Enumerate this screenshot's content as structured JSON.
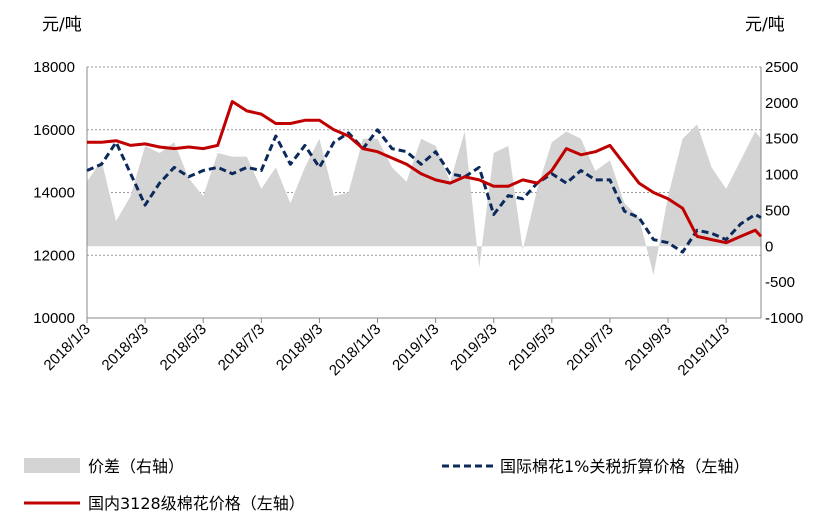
{
  "chart_data": {
    "type": "line",
    "left_unit": "元/吨",
    "right_unit": "元/吨",
    "left_axis": {
      "min": 10000,
      "max": 18000,
      "ticks": [
        "10000",
        "12000",
        "14000",
        "16000",
        "18000"
      ]
    },
    "right_axis": {
      "min": -1000,
      "max": 2500,
      "ticks": [
        "-1000",
        "-500",
        "0",
        "500",
        "1000",
        "1500",
        "2000",
        "2500"
      ]
    },
    "x_labels": [
      "2018/1/3",
      "2018/3/3",
      "2018/5/3",
      "2018/7/3",
      "2018/9/3",
      "2018/11/3",
      "2019/1/3",
      "2019/3/3",
      "2019/5/3",
      "2019/7/3",
      "2019/9/3",
      "2019/11/3"
    ],
    "grid": "horizontal dashed",
    "legend_placement": "bottom",
    "colors": {
      "spread": "#d4d4d4",
      "intl": "#0b2a5b",
      "domestic": "#c00000"
    },
    "series": [
      {
        "name": "价差（右轴）",
        "axis": "right",
        "style": "area",
        "x": [
          0,
          0.5,
          1,
          1.5,
          2,
          2.5,
          3,
          3.5,
          4,
          4.5,
          5,
          5.5,
          6,
          6.5,
          7,
          7.5,
          8,
          8.5,
          9,
          9.5,
          10,
          10.5,
          11,
          11.5,
          12,
          12.5,
          13,
          13.5,
          14,
          14.5,
          15,
          15.5,
          16,
          16.5,
          17,
          17.5,
          18,
          18.5,
          19,
          19.5,
          20,
          20.5,
          21,
          21.5,
          22,
          22.5,
          23,
          23.2
        ],
        "values": [
          900,
          1200,
          350,
          700,
          1400,
          1300,
          1450,
          950,
          700,
          1300,
          1250,
          1250,
          800,
          1100,
          600,
          1100,
          1500,
          700,
          750,
          1500,
          1500,
          1100,
          900,
          1500,
          1400,
          900,
          1600,
          -300,
          1300,
          1400,
          -50,
          800,
          1450,
          1600,
          1500,
          1050,
          1200,
          600,
          400,
          -400,
          700,
          1500,
          1700,
          1100,
          800,
          1200,
          1600,
          1500
        ]
      },
      {
        "name": "国际棉花1%关税折算价格（左轴）",
        "axis": "left",
        "style": "dashed",
        "x": [
          0,
          0.5,
          1,
          1.5,
          2,
          2.5,
          3,
          3.5,
          4,
          4.5,
          5,
          5.5,
          6,
          6.5,
          7,
          7.5,
          8,
          8.5,
          9,
          9.5,
          10,
          10.5,
          11,
          11.5,
          12,
          12.5,
          13,
          13.5,
          14,
          14.5,
          15,
          15.5,
          16,
          16.5,
          17,
          17.5,
          18,
          18.5,
          19,
          19.5,
          20,
          20.5,
          21,
          21.5,
          22,
          22.5,
          23,
          23.2
        ],
        "values": [
          14700,
          14900,
          15600,
          14600,
          13600,
          14300,
          14800,
          14500,
          14700,
          14800,
          14600,
          14800,
          14700,
          15800,
          14900,
          15500,
          14800,
          15600,
          15900,
          15400,
          16000,
          15400,
          15300,
          14900,
          15300,
          14600,
          14500,
          14800,
          13300,
          13900,
          13800,
          14300,
          14600,
          14300,
          14700,
          14400,
          14400,
          13400,
          13200,
          12500,
          12400,
          12100,
          12800,
          12700,
          12500,
          13000,
          13300,
          13200
        ]
      },
      {
        "name": "国内3128级棉花价格（左轴）",
        "axis": "left",
        "style": "solid",
        "x": [
          0,
          0.5,
          1,
          1.5,
          2,
          2.5,
          3,
          3.5,
          4,
          4.5,
          5,
          5.5,
          6,
          6.5,
          7,
          7.5,
          8,
          8.5,
          9,
          9.5,
          10,
          10.5,
          11,
          11.5,
          12,
          12.5,
          13,
          13.5,
          14,
          14.5,
          15,
          15.5,
          16,
          16.5,
          17,
          17.5,
          18,
          18.5,
          19,
          19.5,
          20,
          20.5,
          21,
          21.5,
          22,
          22.5,
          23,
          23.2
        ],
        "values": [
          15600,
          15600,
          15650,
          15500,
          15550,
          15450,
          15400,
          15450,
          15400,
          15500,
          16900,
          16600,
          16500,
          16200,
          16200,
          16300,
          16300,
          16000,
          15800,
          15400,
          15300,
          15100,
          14900,
          14600,
          14400,
          14300,
          14500,
          14400,
          14200,
          14200,
          14400,
          14300,
          14700,
          15400,
          15200,
          15300,
          15500,
          14900,
          14300,
          14000,
          13800,
          13500,
          12600,
          12500,
          12400,
          12600,
          12800,
          12600
        ]
      }
    ]
  }
}
